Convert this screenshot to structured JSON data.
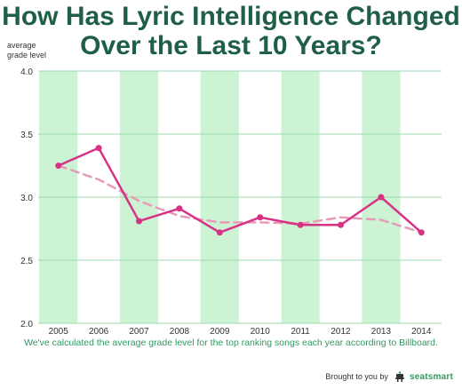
{
  "title_line1": "How Has Lyric Intelligence Changed",
  "title_line2": "Over the Last 10 Years?",
  "caption": "We've calculated the average grade level for the top ranking songs each year according to Billboard.",
  "footer": {
    "brought_by": "Brought to you by",
    "brand": "seatsmart"
  },
  "colors": {
    "title": "#1f5f46",
    "band": "#ccf3d4",
    "grid": "#9fd8ad",
    "line": "#d63384",
    "trend": "#e89ab8",
    "caption": "#2f9a5f"
  },
  "chart_data": {
    "type": "line",
    "title": "How Has Lyric Intelligence Changed Over the Last 10 Years?",
    "ylabel": "average\ngrade level",
    "xlabel": "",
    "categories": [
      "2005",
      "2006",
      "2007",
      "2008",
      "2009",
      "2010",
      "2011",
      "2012",
      "2013",
      "2014"
    ],
    "series": [
      {
        "values": [
          3.25,
          3.39,
          2.81,
          2.91,
          2.72,
          2.84,
          2.78,
          2.78,
          3.0,
          2.72
        ]
      }
    ],
    "trend_values": [
      3.25,
      3.14,
      2.97,
      2.85,
      2.8,
      2.8,
      2.79,
      2.84,
      2.82,
      2.72
    ],
    "ylim": [
      2.0,
      4.0
    ],
    "yticks": [
      "2.0",
      "2.5",
      "3.0",
      "3.5",
      "4.0"
    ],
    "shaded_bands": [
      "2005-2006",
      "2007-2008",
      "2009-2010",
      "2011-2012",
      "2013-2014"
    ],
    "grid": true,
    "legend": "none"
  }
}
